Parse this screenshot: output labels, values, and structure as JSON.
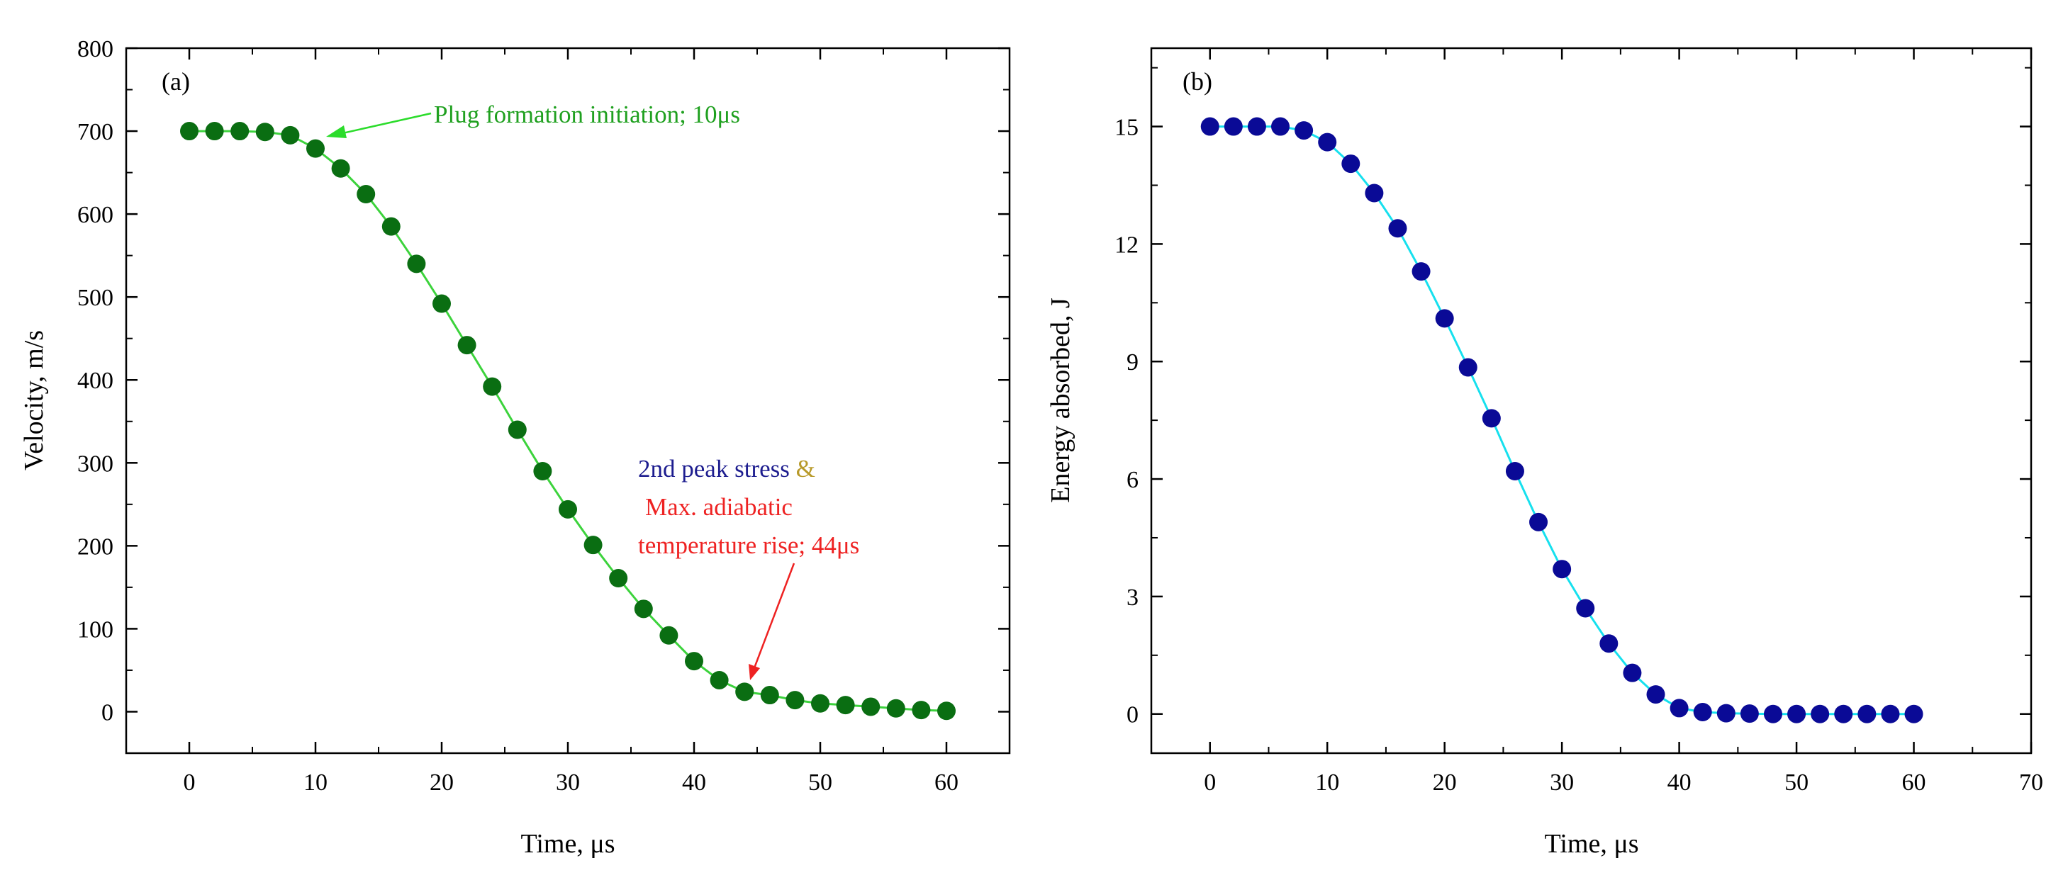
{
  "chart_data": [
    {
      "type": "line",
      "panel_label": "(a)",
      "title": "",
      "xlabel": "Time, μs",
      "ylabel": "Velocity, m/s",
      "xlim": [
        -5,
        65
      ],
      "ylim": [
        -50,
        800
      ],
      "xticks": [
        0,
        10,
        20,
        30,
        40,
        50,
        60
      ],
      "yticks": [
        0,
        100,
        200,
        300,
        400,
        500,
        600,
        700,
        800
      ],
      "grid": false,
      "legend": "none",
      "series": [
        {
          "name": "Velocity",
          "marker_color": "#0a6e12",
          "line_color": "#3cd33c",
          "x": [
            0,
            2,
            4,
            6,
            8,
            10,
            12,
            14,
            16,
            18,
            20,
            22,
            24,
            26,
            28,
            30,
            32,
            34,
            36,
            38,
            40,
            42,
            44,
            46,
            48,
            50,
            52,
            54,
            56,
            58,
            60
          ],
          "values": [
            700,
            700,
            700,
            699,
            695,
            679,
            655,
            624,
            585,
            540,
            492,
            442,
            392,
            340,
            290,
            244,
            201,
            161,
            124,
            92,
            61,
            38,
            24,
            20,
            14,
            10,
            8,
            6,
            4,
            2,
            1
          ]
        }
      ],
      "annotations": [
        {
          "text": "Plug formation initiation; 10μs",
          "color": "#1fa01f",
          "arrow_color": "#2bdc2b",
          "points_to": {
            "x": 11,
            "y": 690
          }
        },
        {
          "text": "2nd peak stress ",
          "color": "#1d1d8f"
        },
        {
          "text": "&",
          "color": "#b89a2a"
        },
        {
          "text": "Max. adiabatic",
          "color": "#ee2222"
        },
        {
          "text": "temperature rise; 44μs",
          "color": "#ee2222",
          "arrow_color": "#ee2222",
          "points_to": {
            "x": 44,
            "y": 32
          }
        }
      ]
    },
    {
      "type": "line",
      "panel_label": "(b)",
      "title": "",
      "xlabel": "Time, μs",
      "ylabel": "Energy absorbed, J",
      "xlim": [
        -5,
        70
      ],
      "ylim": [
        -1,
        17
      ],
      "xticks": [
        0,
        10,
        20,
        30,
        40,
        50,
        60,
        70
      ],
      "yticks": [
        0,
        3,
        6,
        9,
        12,
        15
      ],
      "grid": false,
      "legend": "none",
      "series": [
        {
          "name": "Energy absorbed",
          "marker_color": "#0a0a96",
          "line_color": "#16e0ee",
          "x": [
            0,
            2,
            4,
            6,
            8,
            10,
            12,
            14,
            16,
            18,
            20,
            22,
            24,
            26,
            28,
            30,
            32,
            34,
            36,
            38,
            40,
            42,
            44,
            46,
            48,
            50,
            52,
            54,
            56,
            58,
            60
          ],
          "values": [
            15,
            15,
            15,
            15,
            14.9,
            14.6,
            14.05,
            13.3,
            12.4,
            11.3,
            10.1,
            8.85,
            7.55,
            6.2,
            4.9,
            3.7,
            2.7,
            1.8,
            1.05,
            0.5,
            0.15,
            0.05,
            0.02,
            0.01,
            0,
            0,
            0,
            0,
            0,
            0,
            0
          ]
        }
      ],
      "annotations": []
    }
  ]
}
